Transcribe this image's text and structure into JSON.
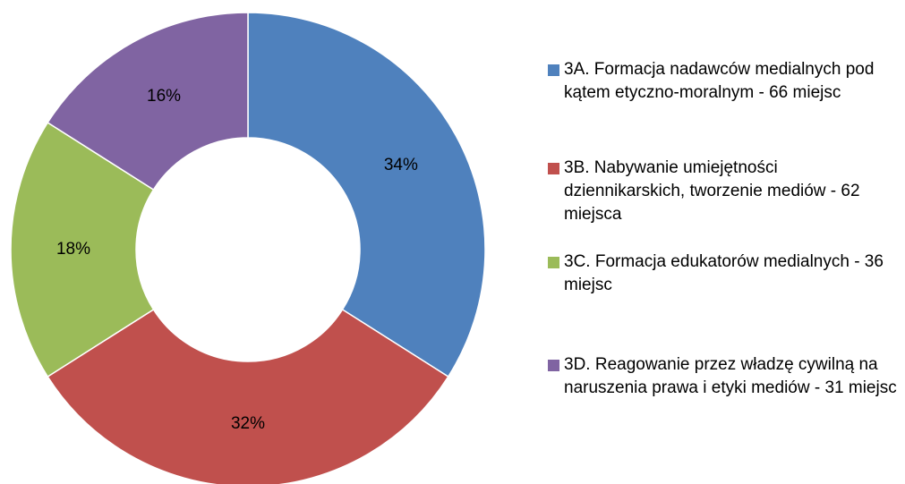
{
  "chart_data": {
    "type": "pie",
    "donut": true,
    "categories": [
      "3A. Formacja nadawców medialnych pod kątem etyczno-moralnym - 66 miejsc",
      "3B. Nabywanie umiejętności dziennikarskich, tworzenie mediów - 62 miejsca",
      "3C. Formacja edukatorów medialnych - 36 miejsc",
      "3D. Reagowanie przez władzę cywilną na naruszenia prawa i etyki mediów - 31 miejsc"
    ],
    "values": [
      34,
      32,
      18,
      16
    ],
    "value_labels": [
      "34%",
      "32%",
      "18%",
      "16%"
    ],
    "colors": [
      "#4f81bd",
      "#c0504d",
      "#9bbb59",
      "#8064a2"
    ],
    "legend": "right"
  }
}
